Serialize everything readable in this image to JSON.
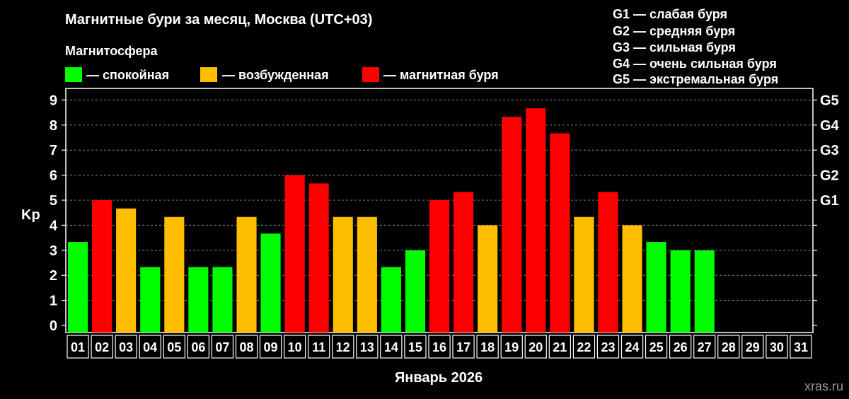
{
  "header": {
    "title": "Магнитные бури за месяц, Москва (UTC+03)",
    "legend_title": "Магнитосфера"
  },
  "legend": {
    "items": [
      {
        "label": "— спокойная",
        "color": "#00ff00"
      },
      {
        "label": "— возбужденная",
        "color": "#ffbf00"
      },
      {
        "label": "— магнитная буря",
        "color": "#ff0000"
      }
    ]
  },
  "storm_scale": [
    "G1 — слабая буря",
    "G2 — средняя буря",
    "G3 — сильная буря",
    "G4 — очень сильная буря",
    "G5 — экстремальная буря"
  ],
  "watermark": "xras.ru",
  "chart_data": {
    "type": "bar",
    "title": "Магнитные бури за месяц, Москва (UTC+03)",
    "xlabel": "Январь 2026",
    "ylabel": "Kp",
    "ylim": [
      0,
      9
    ],
    "yticks": [
      "0",
      "1",
      "2",
      "3",
      "4",
      "5",
      "6",
      "7",
      "8",
      "9"
    ],
    "right_axis": {
      "5": "G1",
      "6": "G2",
      "7": "G3",
      "8": "G4",
      "9": "G5"
    },
    "grid": true,
    "categories": [
      "01",
      "02",
      "03",
      "04",
      "05",
      "06",
      "07",
      "08",
      "09",
      "10",
      "11",
      "12",
      "13",
      "14",
      "15",
      "16",
      "17",
      "18",
      "19",
      "20",
      "21",
      "22",
      "23",
      "24",
      "25",
      "26",
      "27",
      "28",
      "29",
      "30",
      "31"
    ],
    "values": [
      3.33,
      5.0,
      4.67,
      2.33,
      4.33,
      2.33,
      2.33,
      4.33,
      3.67,
      6.0,
      5.67,
      4.33,
      4.33,
      2.33,
      3.0,
      5.0,
      5.33,
      4.0,
      8.33,
      8.67,
      7.67,
      4.33,
      5.33,
      4.0,
      3.33,
      3.0,
      3.0,
      null,
      null,
      null,
      null
    ],
    "levels": [
      "quiet",
      "storm",
      "active",
      "quiet",
      "active",
      "quiet",
      "quiet",
      "active",
      "quiet",
      "storm",
      "storm",
      "active",
      "active",
      "quiet",
      "quiet",
      "storm",
      "storm",
      "active",
      "storm",
      "storm",
      "storm",
      "active",
      "storm",
      "active",
      "quiet",
      "quiet",
      "quiet",
      null,
      null,
      null,
      null
    ],
    "colors": {
      "quiet": "#00ff00",
      "active": "#ffbf00",
      "storm": "#ff0000"
    }
  }
}
